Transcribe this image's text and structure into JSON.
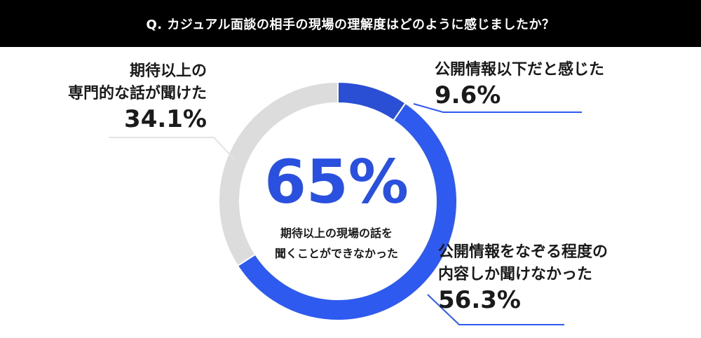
{
  "question": "Q. カジュアル面談の相手の現場の理解度はどのように感じましたか？",
  "center": {
    "value": "65%",
    "line1": "期待以上の現場の話を",
    "line2": "聞くことができなかった"
  },
  "colors": {
    "header_bg": "#000000",
    "slice_dark_blue": "#2a4fd4",
    "slice_blue": "#2f5af0",
    "slice_gray": "#dcdcdc",
    "accent_text": "#2a50e0"
  },
  "chart_data": {
    "type": "pie",
    "title": "Q. カジュアル面談の相手の現場の理解度はどのように感じましたか？",
    "donut": true,
    "start_angle_deg": 0,
    "direction": "clockwise",
    "slices": [
      {
        "label_lines": [
          "公開情報以下だと感じた"
        ],
        "value": 9.6,
        "display": "9.6%",
        "color": "#2a4fd4"
      },
      {
        "label_lines": [
          "公開情報をなぞる程度の",
          "内容しか聞けなかった"
        ],
        "value": 56.3,
        "display": "56.3%",
        "color": "#2f5af0"
      },
      {
        "label_lines": [
          "期待以上の",
          "専門的な話が聞けた"
        ],
        "value": 34.1,
        "display": "34.1%",
        "color": "#dcdcdc"
      }
    ]
  }
}
